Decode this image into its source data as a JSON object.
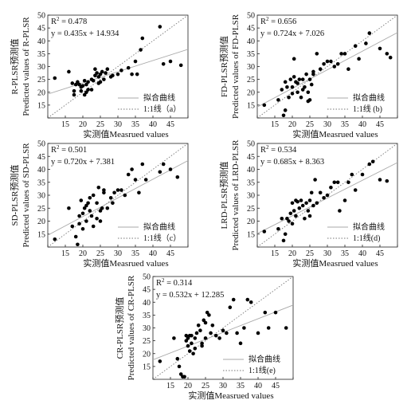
{
  "chart_data": [
    {
      "type": "scatter",
      "panel": "(a)",
      "xlabel": "实测值Measrued values",
      "ylabel_cn": "R-PLSR预测值",
      "ylabel_en": "Predicted values of R-PLSR",
      "xlim": [
        10,
        50
      ],
      "ylim": [
        10,
        50
      ],
      "xticks": [
        10,
        15,
        20,
        25,
        30,
        35,
        40,
        45,
        50
      ],
      "yticks": [
        10,
        15,
        20,
        25,
        30,
        35,
        40,
        45,
        50
      ],
      "xtick_labels": [
        "",
        "15",
        "20",
        "25",
        "30",
        "35",
        "40",
        "45",
        ""
      ],
      "ytick_labels": [
        "",
        "15",
        "20",
        "25",
        "30",
        "35",
        "40",
        "45",
        "50"
      ],
      "r2_text": "R",
      "r2_sup": "2",
      "r2_value": " = 0.478",
      "equation": "y = 0.435x + 14.934",
      "fit": {
        "slope": 0.435,
        "intercept": 14.934
      },
      "legend": {
        "fit_label": "拟合曲线",
        "ref_label": "1:1线（a）"
      },
      "points": [
        [
          12,
          25.5
        ],
        [
          16,
          28
        ],
        [
          17,
          23.5
        ],
        [
          17.5,
          19
        ],
        [
          17.5,
          20.5
        ],
        [
          18,
          23
        ],
        [
          18.5,
          24
        ],
        [
          19,
          23
        ],
        [
          19.5,
          20.5
        ],
        [
          19.5,
          22
        ],
        [
          20,
          22.5
        ],
        [
          20.5,
          24.5
        ],
        [
          20.5,
          19
        ],
        [
          21,
          20
        ],
        [
          21,
          23
        ],
        [
          21.5,
          21
        ],
        [
          21.5,
          24
        ],
        [
          22.5,
          25
        ],
        [
          22.5,
          21
        ],
        [
          23,
          24.5
        ],
        [
          23.5,
          26.5
        ],
        [
          23.5,
          29
        ],
        [
          24,
          27.5
        ],
        [
          24.5,
          23.5
        ],
        [
          24.5,
          26
        ],
        [
          25,
          24
        ],
        [
          25,
          27
        ],
        [
          25.5,
          28
        ],
        [
          26,
          25
        ],
        [
          26.5,
          27.5
        ],
        [
          27,
          29
        ],
        [
          28,
          26
        ],
        [
          28.5,
          26.5
        ],
        [
          30,
          27
        ],
        [
          31,
          28.5
        ],
        [
          33,
          29.5
        ],
        [
          34,
          27
        ],
        [
          35,
          32
        ],
        [
          35.5,
          27
        ],
        [
          36.5,
          36.5
        ],
        [
          37,
          41
        ],
        [
          42,
          45.5
        ],
        [
          43,
          31
        ],
        [
          45,
          32
        ],
        [
          48,
          30.5
        ]
      ]
    },
    {
      "type": "scatter",
      "panel": "(b)",
      "xlabel": "实测值Measrued values",
      "ylabel_cn": "FD-PLSR预测值",
      "ylabel_en": "Predicted values of FD-PLSR",
      "xlim": [
        10,
        50
      ],
      "ylim": [
        10,
        50
      ],
      "xticks": [
        10,
        15,
        20,
        25,
        30,
        35,
        40,
        45,
        50
      ],
      "yticks": [
        10,
        15,
        20,
        25,
        30,
        35,
        40,
        45,
        50
      ],
      "xtick_labels": [
        "",
        "15",
        "20",
        "25",
        "30",
        "35",
        "40",
        "45",
        ""
      ],
      "ytick_labels": [
        "",
        "15",
        "20",
        "25",
        "30",
        "35",
        "40",
        "45",
        "50"
      ],
      "r2_text": "R",
      "r2_sup": "2",
      "r2_value": " = 0.656",
      "equation": "y = 0.724x + 7.026",
      "fit": {
        "slope": 0.724,
        "intercept": 7.026
      },
      "legend": {
        "fit_label": "拟合曲线",
        "ref_label": "1:1线 (b)"
      },
      "points": [
        [
          12,
          15
        ],
        [
          16,
          17
        ],
        [
          17,
          21
        ],
        [
          17.5,
          11
        ],
        [
          18,
          13
        ],
        [
          18,
          24
        ],
        [
          18.5,
          22
        ],
        [
          19,
          18
        ],
        [
          19.5,
          25
        ],
        [
          20,
          22
        ],
        [
          20,
          19.5
        ],
        [
          20.5,
          33
        ],
        [
          20.5,
          26
        ],
        [
          21,
          24
        ],
        [
          21.5,
          20
        ],
        [
          21.5,
          23.5
        ],
        [
          22,
          25
        ],
        [
          22.5,
          18
        ],
        [
          23,
          21
        ],
        [
          23,
          25
        ],
        [
          23.5,
          22
        ],
        [
          24,
          27
        ],
        [
          24.5,
          20
        ],
        [
          24.5,
          16.5
        ],
        [
          25,
          25
        ],
        [
          25,
          17
        ],
        [
          25.5,
          23
        ],
        [
          26,
          27
        ],
        [
          26,
          28
        ],
        [
          27,
          35
        ],
        [
          28,
          29
        ],
        [
          29,
          31
        ],
        [
          30,
          32
        ],
        [
          31,
          32
        ],
        [
          32,
          30
        ],
        [
          33,
          31
        ],
        [
          34,
          35
        ],
        [
          35,
          35
        ],
        [
          36,
          29
        ],
        [
          38,
          38
        ],
        [
          39,
          33
        ],
        [
          41,
          39
        ],
        [
          42,
          43
        ],
        [
          45,
          37
        ],
        [
          47,
          35
        ],
        [
          48,
          33.5
        ]
      ]
    },
    {
      "type": "scatter",
      "panel": "(c)",
      "xlabel": "实测值Measrued values",
      "ylabel_cn": "SD-PLSR预测值",
      "ylabel_en": "Predicted values of SD-PLSR",
      "xlim": [
        10,
        50
      ],
      "ylim": [
        10,
        50
      ],
      "xticks": [
        10,
        15,
        20,
        25,
        30,
        35,
        40,
        45,
        50
      ],
      "yticks": [
        10,
        15,
        20,
        25,
        30,
        35,
        40,
        45,
        50
      ],
      "xtick_labels": [
        "",
        "15",
        "20",
        "25",
        "30",
        "35",
        "40",
        "45",
        ""
      ],
      "ytick_labels": [
        "",
        "15",
        "20",
        "25",
        "30",
        "35",
        "40",
        "45",
        "50"
      ],
      "r2_text": "R",
      "r2_sup": "2",
      "r2_value": " = 0.501",
      "equation": "y = 0.720x + 7.381",
      "fit": {
        "slope": 0.72,
        "intercept": 7.381
      },
      "legend": {
        "fit_label": "拟合曲线",
        "ref_label": "1:1线（c）"
      },
      "points": [
        [
          12,
          13
        ],
        [
          16,
          25
        ],
        [
          17,
          18
        ],
        [
          18,
          14
        ],
        [
          18.5,
          11
        ],
        [
          19,
          19
        ],
        [
          19,
          22
        ],
        [
          19.5,
          28
        ],
        [
          20,
          17
        ],
        [
          20,
          23
        ],
        [
          20.5,
          25
        ],
        [
          21,
          20
        ],
        [
          21,
          26
        ],
        [
          21.5,
          27
        ],
        [
          22,
          24
        ],
        [
          22,
          29
        ],
        [
          22.5,
          22
        ],
        [
          23,
          30
        ],
        [
          23,
          18
        ],
        [
          24,
          27
        ],
        [
          24,
          21
        ],
        [
          24.5,
          33
        ],
        [
          25,
          24
        ],
        [
          25,
          20
        ],
        [
          25.5,
          25
        ],
        [
          26,
          31
        ],
        [
          26,
          32
        ],
        [
          27,
          25
        ],
        [
          28,
          29
        ],
        [
          28.5,
          27
        ],
        [
          29,
          31
        ],
        [
          30,
          32
        ],
        [
          31,
          32
        ],
        [
          32,
          30
        ],
        [
          33,
          38
        ],
        [
          34,
          40
        ],
        [
          35,
          36
        ],
        [
          36,
          31
        ],
        [
          37,
          42
        ],
        [
          38,
          36
        ],
        [
          42,
          39
        ],
        [
          43,
          42
        ],
        [
          45,
          40
        ],
        [
          47,
          37
        ]
      ]
    },
    {
      "type": "scatter",
      "panel": "(d)",
      "xlabel": "实测值Measrued values",
      "ylabel_cn": "LRD-PLSR预测值",
      "ylabel_en": "Predicted values of LRD-PLSR",
      "xlim": [
        10,
        50
      ],
      "ylim": [
        10,
        50
      ],
      "xticks": [
        10,
        15,
        20,
        25,
        30,
        35,
        40,
        45,
        50
      ],
      "yticks": [
        10,
        15,
        20,
        25,
        30,
        35,
        40,
        45,
        50
      ],
      "xtick_labels": [
        "",
        "15",
        "20",
        "25",
        "30",
        "35",
        "40",
        "45",
        ""
      ],
      "ytick_labels": [
        "",
        "15",
        "20",
        "25",
        "30",
        "35",
        "40",
        "45",
        "50"
      ],
      "r2_text": "R",
      "r2_sup": "2",
      "r2_value": " = 0.534",
      "equation": "y = 0.685x + 8.363",
      "fit": {
        "slope": 0.685,
        "intercept": 8.363
      },
      "legend": {
        "fit_label": "拟合曲线",
        "ref_label": "1:1线(d)"
      },
      "points": [
        [
          12,
          16
        ],
        [
          16,
          17
        ],
        [
          17,
          21
        ],
        [
          17.5,
          12.5
        ],
        [
          18,
          15
        ],
        [
          18.5,
          21
        ],
        [
          19,
          20
        ],
        [
          19.5,
          23
        ],
        [
          20,
          27
        ],
        [
          20,
          19
        ],
        [
          20.5,
          24
        ],
        [
          21,
          28
        ],
        [
          21,
          22
        ],
        [
          21.5,
          27.5
        ],
        [
          22,
          25
        ],
        [
          22.5,
          28
        ],
        [
          23,
          26
        ],
        [
          23.5,
          21
        ],
        [
          24,
          27
        ],
        [
          24.5,
          24
        ],
        [
          25,
          28
        ],
        [
          25,
          22
        ],
        [
          25.5,
          31
        ],
        [
          26,
          26
        ],
        [
          26.5,
          36
        ],
        [
          27,
          27
        ],
        [
          28,
          31
        ],
        [
          29,
          29
        ],
        [
          30,
          30
        ],
        [
          31,
          33
        ],
        [
          32,
          35
        ],
        [
          33,
          35
        ],
        [
          33.5,
          24
        ],
        [
          35,
          28
        ],
        [
          36,
          35
        ],
        [
          37,
          38
        ],
        [
          38,
          32
        ],
        [
          40,
          38
        ],
        [
          42,
          42
        ],
        [
          43,
          43
        ],
        [
          45,
          36
        ],
        [
          47,
          35.5
        ]
      ]
    },
    {
      "type": "scatter",
      "panel": "(e)",
      "xlabel": "实测值Measrued values",
      "ylabel_cn": "CR-PLSR预测值",
      "ylabel_en": "Predicted values of CR-PLSR",
      "xlim": [
        10,
        50
      ],
      "ylim": [
        10,
        50
      ],
      "xticks": [
        10,
        15,
        20,
        25,
        30,
        35,
        40,
        45,
        50
      ],
      "yticks": [
        10,
        15,
        20,
        25,
        30,
        35,
        40,
        45,
        50
      ],
      "xtick_labels": [
        "",
        "15",
        "20",
        "25",
        "30",
        "35",
        "40",
        "45",
        ""
      ],
      "ytick_labels": [
        "",
        "15",
        "20",
        "25",
        "30",
        "35",
        "40",
        "45",
        "50"
      ],
      "r2_text": "R",
      "r2_sup": "2",
      "r2_value": " = 0.314",
      "equation": "y = 0.532x + 12.285",
      "fit": {
        "slope": 0.532,
        "intercept": 12.285
      },
      "legend": {
        "fit_label": "拟合曲线",
        "ref_label": "1:1线(e)"
      },
      "points": [
        [
          12,
          17
        ],
        [
          16,
          26
        ],
        [
          17,
          18
        ],
        [
          17.5,
          15
        ],
        [
          18,
          12
        ],
        [
          18.5,
          11
        ],
        [
          19,
          11
        ],
        [
          19.5,
          25
        ],
        [
          19.5,
          27
        ],
        [
          20,
          23
        ],
        [
          20,
          26
        ],
        [
          20.5,
          27
        ],
        [
          20.5,
          21
        ],
        [
          21,
          24
        ],
        [
          21,
          27
        ],
        [
          21.5,
          20
        ],
        [
          22,
          22
        ],
        [
          22,
          26
        ],
        [
          22.5,
          28
        ],
        [
          23,
          31
        ],
        [
          23.5,
          29
        ],
        [
          24,
          23
        ],
        [
          24,
          24
        ],
        [
          24.5,
          33
        ],
        [
          25,
          32
        ],
        [
          25,
          26
        ],
        [
          25.5,
          36
        ],
        [
          26,
          35
        ],
        [
          26.5,
          28
        ],
        [
          27,
          31
        ],
        [
          28,
          27
        ],
        [
          29,
          26
        ],
        [
          30,
          29
        ],
        [
          31,
          28
        ],
        [
          32,
          38
        ],
        [
          33,
          41
        ],
        [
          34,
          28
        ],
        [
          35,
          24
        ],
        [
          36,
          30
        ],
        [
          37,
          41
        ],
        [
          38,
          40
        ],
        [
          40,
          28
        ],
        [
          42,
          36
        ],
        [
          43,
          30
        ],
        [
          45,
          36
        ],
        [
          48,
          30
        ]
      ]
    }
  ]
}
